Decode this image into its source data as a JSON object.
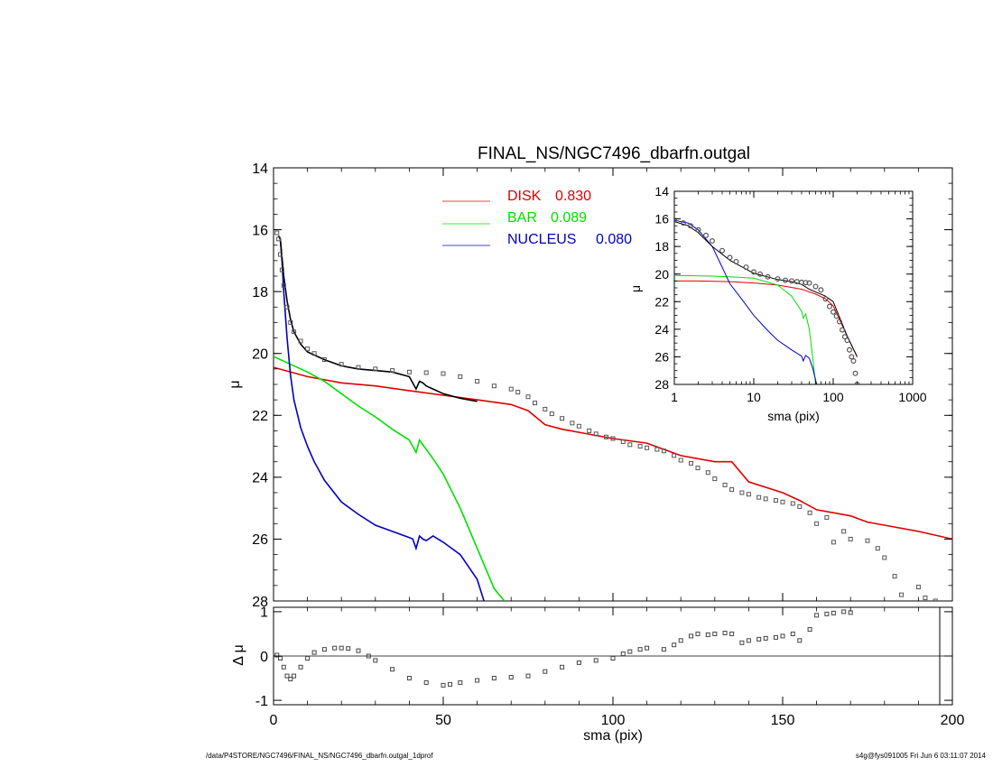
{
  "chart_data": [
    {
      "type": "scatter",
      "title": "FINAL_NS/NGC7496_dbarfn.outgal",
      "xlabel": "",
      "ylabel": "μ",
      "xlim": [
        0,
        200
      ],
      "ylim": [
        28,
        14
      ],
      "y_inverted": true,
      "xticks": [
        0,
        50,
        100,
        150,
        200
      ],
      "yticks": [
        14,
        16,
        18,
        20,
        22,
        24,
        26,
        28
      ],
      "ytick_labels": [
        "14",
        "16",
        "18",
        "20",
        "22",
        "24",
        "26",
        "28"
      ],
      "legend": {
        "placement": "top-center",
        "entries": [
          {
            "label": "DISK",
            "value": "0.830",
            "color": "#ff0000"
          },
          {
            "label": "BAR",
            "value": "0.089",
            "color": "#00e000"
          },
          {
            "label": "NUCLEUS",
            "value": "0.080",
            "color": "#0000c0"
          }
        ]
      },
      "series": [
        {
          "name": "DISK",
          "color": "#e00000",
          "x": [
            0,
            10,
            20,
            30,
            40,
            50,
            60,
            70,
            75,
            80,
            85,
            90,
            100,
            110,
            115,
            120,
            130,
            135,
            140,
            150,
            155,
            160,
            170,
            175,
            180,
            190,
            200
          ],
          "y": [
            20.45,
            20.75,
            20.95,
            21.05,
            21.2,
            21.35,
            21.5,
            21.65,
            21.85,
            22.3,
            22.45,
            22.55,
            22.75,
            22.9,
            23.1,
            23.3,
            23.5,
            23.5,
            24.15,
            24.5,
            24.75,
            25.05,
            25.25,
            25.45,
            25.55,
            25.75,
            26.0
          ]
        },
        {
          "name": "BAR",
          "color": "#00e000",
          "x": [
            0,
            5,
            10,
            15,
            20,
            25,
            30,
            35,
            40,
            41,
            42,
            43,
            44,
            45,
            47,
            50,
            55,
            60,
            65,
            68
          ],
          "y": [
            20.1,
            20.35,
            20.6,
            20.9,
            21.3,
            21.7,
            22.05,
            22.45,
            22.8,
            23.0,
            23.2,
            22.8,
            22.95,
            23.1,
            23.4,
            23.9,
            25.0,
            26.3,
            27.6,
            28.0
          ]
        },
        {
          "name": "NUCLEUS",
          "color": "#0000c0",
          "x": [
            1.5,
            2,
            2.5,
            3,
            4,
            5,
            6,
            8,
            10,
            12,
            15,
            20,
            25,
            30,
            35,
            40,
            41,
            42,
            43,
            44,
            45,
            47,
            50,
            55,
            60,
            62
          ],
          "y": [
            16.2,
            16.3,
            17.0,
            18.0,
            19.5,
            20.7,
            21.5,
            22.4,
            23.0,
            23.5,
            24.1,
            24.8,
            25.2,
            25.55,
            25.75,
            25.95,
            26.0,
            26.3,
            25.9,
            26.0,
            26.05,
            25.9,
            26.1,
            26.5,
            27.3,
            28.0
          ]
        },
        {
          "name": "",
          "color": "#000000",
          "x": [
            1.5,
            2,
            3,
            4,
            5,
            6,
            8,
            10,
            15,
            20,
            25,
            30,
            35,
            40,
            41,
            42,
            43,
            44,
            45,
            47,
            50,
            55,
            60
          ],
          "y": [
            16.2,
            16.3,
            17.5,
            18.3,
            18.9,
            19.3,
            19.7,
            19.95,
            20.2,
            20.4,
            20.5,
            20.55,
            20.6,
            20.75,
            20.95,
            21.15,
            20.9,
            20.95,
            21.05,
            21.15,
            21.3,
            21.45,
            21.55
          ]
        },
        {
          "name": "",
          "color": "#555555",
          "marker": "square",
          "x": [
            1,
            1.5,
            2,
            2.5,
            3,
            4,
            5,
            6,
            8,
            10,
            12,
            15,
            20,
            25,
            30,
            35,
            40,
            45,
            50,
            55,
            60,
            65,
            70,
            72,
            75,
            77,
            80,
            82,
            85,
            88,
            90,
            93,
            95,
            98,
            100,
            103,
            105,
            108,
            110,
            113,
            115,
            118,
            120,
            123,
            125,
            128,
            130,
            133,
            135,
            138,
            140,
            143,
            145,
            148,
            150,
            153,
            155,
            158,
            160,
            163,
            165,
            168,
            170,
            175,
            178,
            180,
            183,
            185,
            190,
            192,
            195
          ],
          "y": [
            16.1,
            16.3,
            16.8,
            17.3,
            17.8,
            18.5,
            19.0,
            19.3,
            19.6,
            19.85,
            20.0,
            20.2,
            20.35,
            20.45,
            20.5,
            20.55,
            20.6,
            20.62,
            20.65,
            20.75,
            20.9,
            21.05,
            21.15,
            21.25,
            21.4,
            21.6,
            21.8,
            21.95,
            22.1,
            22.25,
            22.35,
            22.5,
            22.6,
            22.7,
            22.75,
            22.85,
            22.95,
            23.0,
            23.05,
            23.1,
            23.15,
            23.3,
            23.45,
            23.55,
            23.7,
            23.85,
            24.05,
            24.25,
            24.4,
            24.5,
            24.55,
            24.65,
            24.7,
            24.75,
            24.8,
            24.85,
            24.95,
            25.15,
            25.5,
            25.3,
            26.1,
            25.75,
            26.0,
            26.05,
            26.3,
            26.6,
            27.2,
            27.8,
            27.55,
            27.9,
            28.0
          ]
        }
      ]
    },
    {
      "type": "scatter",
      "title": "",
      "xlabel": "sma (pix)",
      "ylabel": "Δ μ",
      "xlim": [
        0,
        200
      ],
      "ylim": [
        -1.1,
        1.1
      ],
      "xticks": [
        0,
        50,
        100,
        150,
        200
      ],
      "yticks": [
        -1,
        0,
        1
      ],
      "ytick_labels": [
        "-1",
        "0",
        "1"
      ],
      "reference_line": 0,
      "series": [
        {
          "name": "",
          "color": "#444444",
          "marker": "square",
          "x": [
            1,
            2,
            3,
            4,
            5,
            6,
            8,
            10,
            12,
            15,
            18,
            20,
            22,
            25,
            28,
            30,
            35,
            40,
            45,
            50,
            52,
            55,
            60,
            65,
            70,
            75,
            80,
            85,
            90,
            95,
            100,
            103,
            105,
            108,
            110,
            115,
            118,
            120,
            123,
            125,
            128,
            130,
            133,
            135,
            138,
            140,
            143,
            145,
            148,
            150,
            153,
            155,
            158,
            160,
            163,
            165,
            168,
            170
          ],
          "y": [
            0.02,
            -0.05,
            -0.25,
            -0.45,
            -0.52,
            -0.45,
            -0.25,
            -0.05,
            0.08,
            0.15,
            0.18,
            0.18,
            0.17,
            0.12,
            0.0,
            -0.1,
            -0.3,
            -0.5,
            -0.6,
            -0.66,
            -0.64,
            -0.6,
            -0.55,
            -0.5,
            -0.48,
            -0.45,
            -0.35,
            -0.25,
            -0.15,
            -0.1,
            -0.05,
            0.05,
            0.1,
            0.15,
            0.18,
            0.15,
            0.25,
            0.35,
            0.45,
            0.5,
            0.48,
            0.5,
            0.52,
            0.5,
            0.3,
            0.35,
            0.38,
            0.4,
            0.42,
            0.45,
            0.5,
            0.35,
            0.6,
            0.92,
            0.95,
            0.97,
            1.0,
            0.98
          ]
        }
      ]
    },
    {
      "type": "scatter",
      "title": "",
      "xlabel": "sma (pix)",
      "ylabel": "μ",
      "x_scale": "log",
      "xlim": [
        1,
        1000
      ],
      "ylim": [
        28,
        14
      ],
      "y_inverted": true,
      "xticks": [
        1,
        10,
        100,
        1000
      ],
      "xtick_labels": [
        "1",
        "10",
        "100",
        "1000"
      ],
      "yticks": [
        14,
        16,
        18,
        20,
        22,
        24,
        26,
        28
      ],
      "ytick_labels": [
        "14",
        "16",
        "18",
        "20",
        "22",
        "24",
        "26",
        "28"
      ],
      "series": [
        {
          "name": "DISK",
          "color": "#e00000",
          "x": [
            1,
            2,
            5,
            10,
            20,
            40,
            60,
            80,
            100,
            150,
            200
          ],
          "y": [
            20.5,
            20.5,
            20.55,
            20.65,
            20.8,
            21.1,
            21.45,
            21.8,
            22.3,
            24.5,
            26.0
          ]
        },
        {
          "name": "BAR",
          "color": "#00e000",
          "x": [
            1,
            3,
            5,
            10,
            20,
            30,
            40,
            42,
            45,
            50,
            55,
            60
          ],
          "y": [
            20.1,
            20.15,
            20.2,
            20.3,
            20.8,
            21.6,
            22.7,
            23.2,
            22.9,
            24.0,
            26.0,
            28.0
          ]
        },
        {
          "name": "NUCLEUS",
          "color": "#0000c0",
          "x": [
            1,
            1.5,
            2,
            3,
            4,
            5,
            7,
            10,
            15,
            20,
            30,
            40,
            42,
            45,
            50,
            55,
            62
          ],
          "y": [
            16.1,
            16.3,
            16.8,
            18.0,
            19.5,
            20.7,
            21.8,
            23.0,
            24.1,
            24.8,
            25.5,
            25.95,
            26.3,
            25.9,
            26.1,
            26.8,
            28.0
          ]
        },
        {
          "name": "",
          "color": "#000000",
          "x": [
            1,
            1.5,
            2,
            3,
            5,
            10,
            20,
            30,
            40,
            50,
            60,
            80,
            100,
            150,
            200
          ],
          "y": [
            16.2,
            16.5,
            17.0,
            18.0,
            19.0,
            19.95,
            20.4,
            20.55,
            20.75,
            21.1,
            21.3,
            21.6,
            22.0,
            24.5,
            26.0
          ]
        },
        {
          "name": "",
          "color": "#555555",
          "marker": "circle",
          "x": [
            1,
            1.3,
            1.6,
            2,
            2.5,
            3,
            4,
            5,
            6,
            8,
            10,
            12,
            15,
            20,
            25,
            30,
            35,
            40,
            45,
            50,
            60,
            70,
            80,
            90,
            100,
            110,
            120,
            130,
            140,
            150,
            160,
            170,
            180,
            190,
            200
          ],
          "y": [
            16.1,
            16.3,
            16.5,
            16.8,
            17.2,
            17.6,
            18.3,
            18.8,
            19.1,
            19.5,
            19.85,
            20.0,
            20.2,
            20.35,
            20.45,
            20.5,
            20.55,
            20.6,
            20.62,
            20.65,
            20.9,
            21.15,
            21.8,
            22.35,
            22.75,
            23.05,
            23.45,
            24.05,
            24.55,
            24.8,
            25.5,
            26.0,
            26.3,
            27.2,
            28.0
          ]
        }
      ]
    }
  ],
  "footer": {
    "left": "/data/P4STORE/NGC7496/FINAL_NS/NGC7496_dbarfn.outgal_1dprof",
    "right": "s4g@fys091005  Fri Jun  6 03:11:07 2014"
  }
}
